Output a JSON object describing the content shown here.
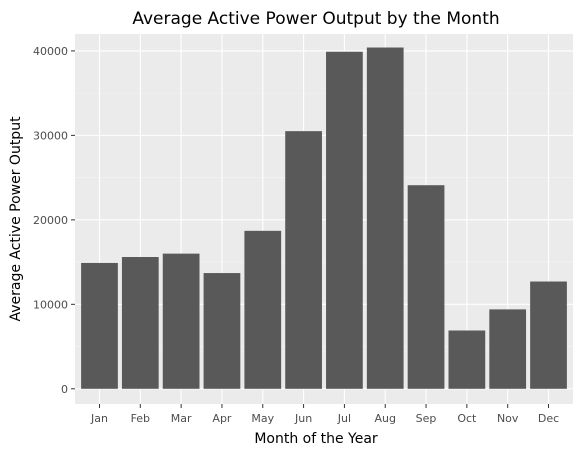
{
  "chart_data": {
    "type": "bar",
    "title": "Average Active Power Output by the Month",
    "xlabel": "Month of the Year",
    "ylabel": "Average Active Power Output",
    "categories": [
      "Jan",
      "Feb",
      "Mar",
      "Apr",
      "May",
      "Jun",
      "Jul",
      "Aug",
      "Sep",
      "Oct",
      "Nov",
      "Dec"
    ],
    "values": [
      14900,
      15600,
      16000,
      13700,
      18700,
      30500,
      39900,
      40400,
      24100,
      6900,
      9400,
      12700
    ],
    "ylim": [
      -1800,
      42000
    ],
    "yticks": [
      0,
      10000,
      20000,
      30000,
      40000
    ],
    "ytick_labels": [
      "0",
      "10000",
      "20000",
      "30000",
      "40000"
    ],
    "grid": true,
    "legend": "none",
    "colors": {
      "panel_background": "#ebebeb",
      "grid_major": "#ffffff",
      "grid_minor": "#f5f5f5",
      "bar_fill": "#595959",
      "tick_mark": "#333333",
      "tick_label": "#4d4d4d"
    }
  }
}
